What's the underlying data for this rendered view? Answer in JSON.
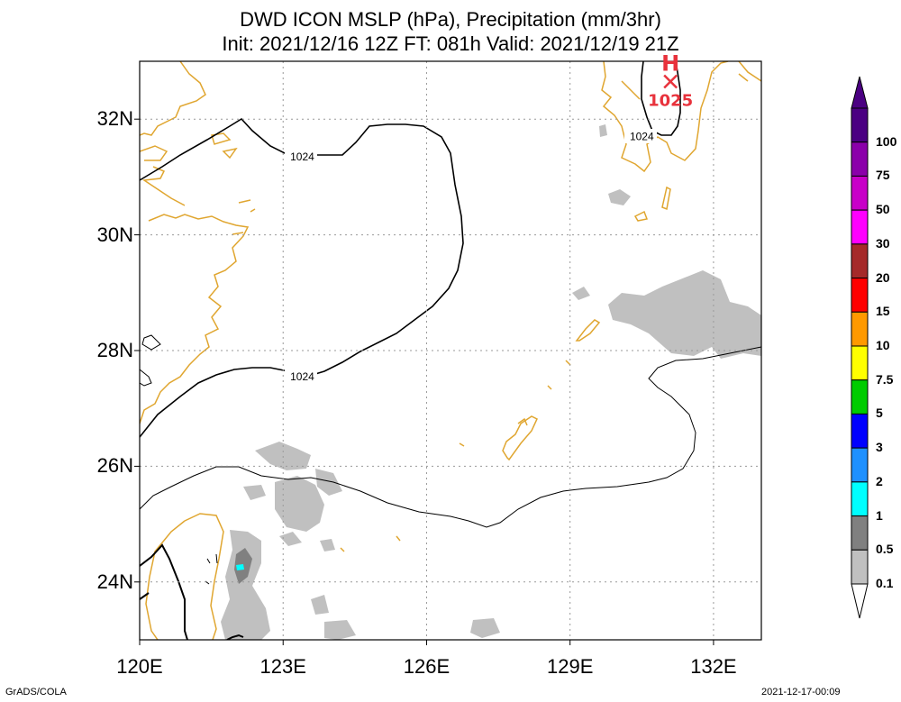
{
  "title": {
    "line1": "DWD ICON MSLP (hPa), Precipitation (mm/3hr)",
    "line2": "Init: 2021/12/16 12Z  FT: 081h  Valid: 2021/12/19 21Z"
  },
  "axes": {
    "x_ticks": [
      {
        "value": 120,
        "label": "120E"
      },
      {
        "value": 123,
        "label": "123E"
      },
      {
        "value": 126,
        "label": "126E"
      },
      {
        "value": 129,
        "label": "129E"
      },
      {
        "value": 132,
        "label": "132E"
      }
    ],
    "y_ticks": [
      {
        "value": 32,
        "label": "32N"
      },
      {
        "value": 30,
        "label": "30N"
      },
      {
        "value": 28,
        "label": "28N"
      },
      {
        "value": 26,
        "label": "26N"
      },
      {
        "value": 24,
        "label": "24N"
      }
    ],
    "lon_range": [
      120,
      133
    ],
    "lat_range": [
      23,
      33
    ]
  },
  "isobar_labels": [
    {
      "text": "1024",
      "lon": 123.4,
      "lat": 31.35
    },
    {
      "text": "1024",
      "lon": 123.4,
      "lat": 27.55
    },
    {
      "text": "1024",
      "lon": 130.5,
      "lat": 31.7
    }
  ],
  "pressure_centers": [
    {
      "type": "H",
      "value": "1025",
      "lon": 131.1,
      "lat": 32.65,
      "color": "#e8323c"
    }
  ],
  "colorbar": {
    "labels": [
      "100",
      "75",
      "50",
      "30",
      "20",
      "15",
      "10",
      "7.5",
      "5",
      "3",
      "2",
      "1",
      "0.5",
      "0.1"
    ],
    "colors": [
      "#4b0082",
      "#8b00aa",
      "#c800c8",
      "#ff00ff",
      "#a52a2a",
      "#ff0000",
      "#ff9900",
      "#ffff00",
      "#00cc00",
      "#0000ff",
      "#1e90ff",
      "#00ffff",
      "#808080",
      "#c0c0c0"
    ]
  },
  "footer": {
    "left": "GrADS/COLA",
    "right": "2021-12-17-00:09"
  }
}
